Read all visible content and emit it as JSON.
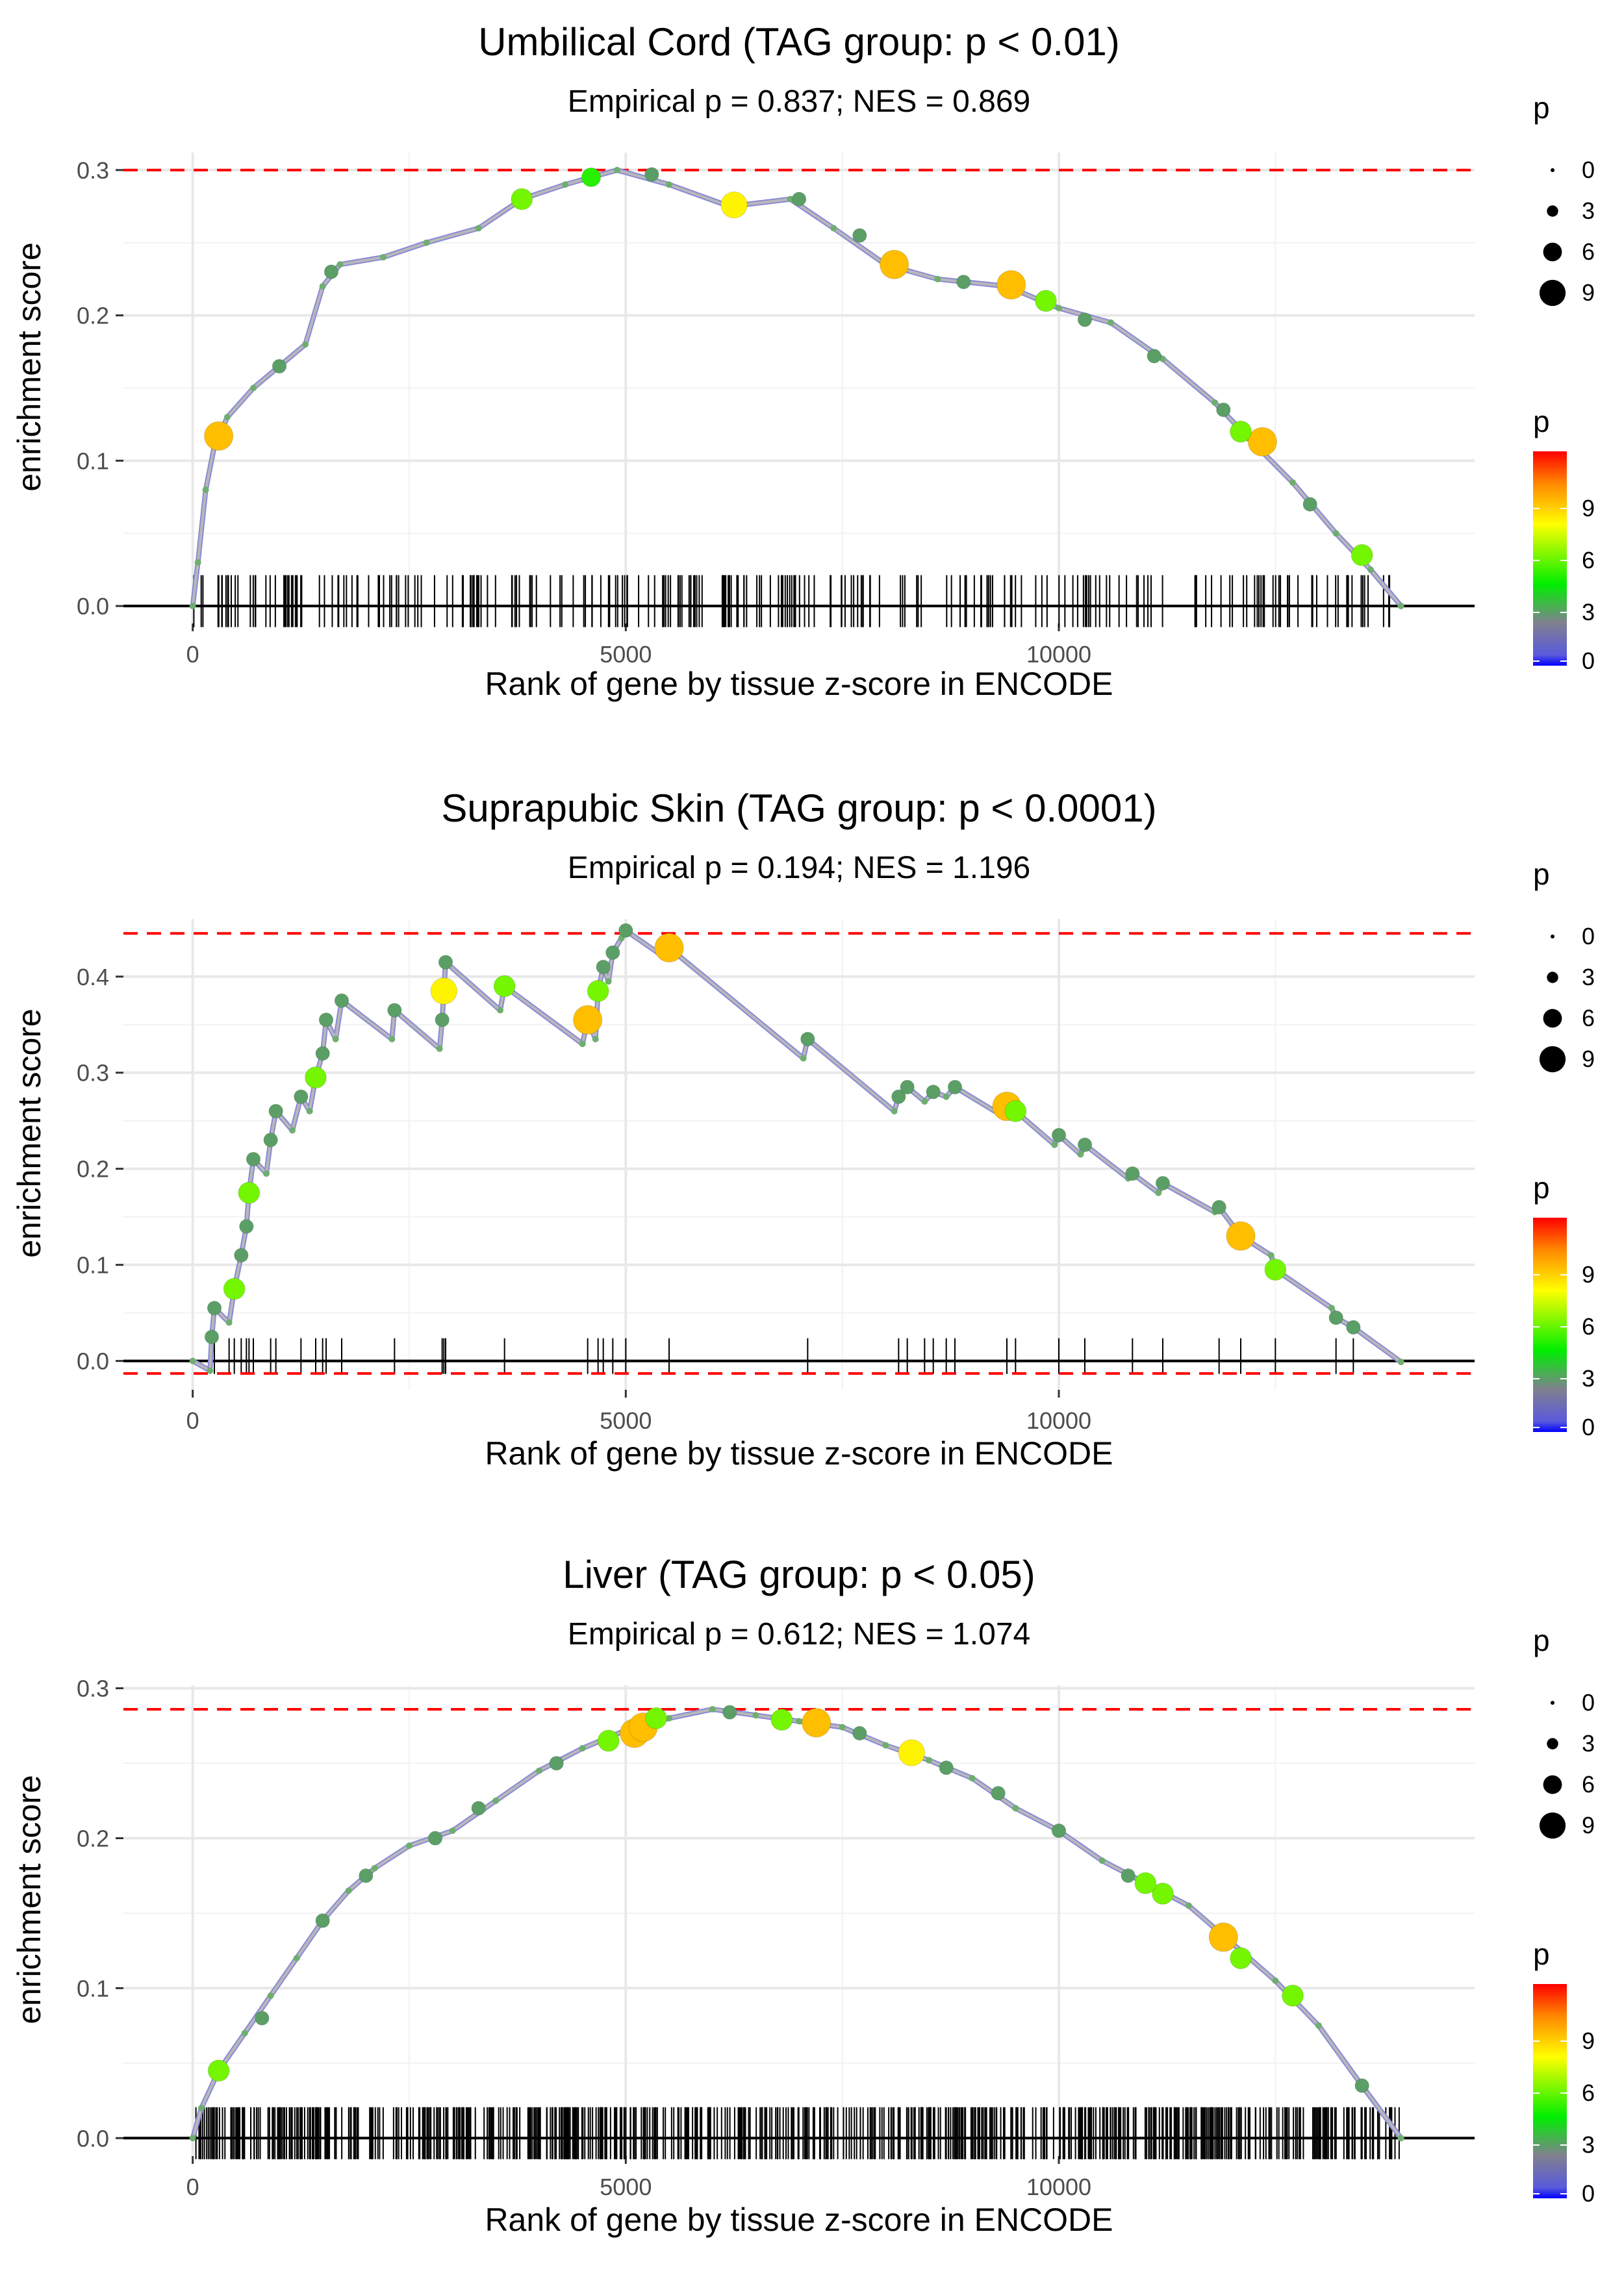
{
  "chart_data": [
    {
      "type": "line",
      "title": "Umbilical Cord (TAG group: p < 0.01)",
      "subtitle": "Empirical p = 0.837; NES = 0.869",
      "xlabel": "Rank of gene by tissue z-score in ENCODE",
      "ylabel": "enrichment score",
      "xlim": [
        -800,
        14800
      ],
      "ylim": [
        -0.012,
        0.312
      ],
      "xticks": [
        0,
        5000,
        10000
      ],
      "yticks": [
        0.0,
        0.1,
        0.2,
        0.3
      ],
      "ytick_labels": [
        "0.0",
        "0.1",
        "0.2",
        "0.3"
      ],
      "max_es": 0.3,
      "min_es": 0.0,
      "curve": [
        [
          0,
          0.0
        ],
        [
          60,
          0.03
        ],
        [
          150,
          0.08
        ],
        [
          250,
          0.11
        ],
        [
          400,
          0.13
        ],
        [
          700,
          0.15
        ],
        [
          1000,
          0.165
        ],
        [
          1300,
          0.18
        ],
        [
          1500,
          0.22
        ],
        [
          1700,
          0.235
        ],
        [
          2200,
          0.24
        ],
        [
          2700,
          0.25
        ],
        [
          3300,
          0.26
        ],
        [
          3800,
          0.28
        ],
        [
          4300,
          0.29
        ],
        [
          4900,
          0.3
        ],
        [
          5500,
          0.29
        ],
        [
          6200,
          0.275
        ],
        [
          6900,
          0.28
        ],
        [
          7400,
          0.26
        ],
        [
          8000,
          0.235
        ],
        [
          8600,
          0.225
        ],
        [
          9400,
          0.22
        ],
        [
          10000,
          0.205
        ],
        [
          10600,
          0.195
        ],
        [
          11200,
          0.17
        ],
        [
          11800,
          0.14
        ],
        [
          12200,
          0.115
        ],
        [
          12700,
          0.085
        ],
        [
          13200,
          0.05
        ],
        [
          13600,
          0.025
        ],
        [
          13950,
          0.0
        ]
      ],
      "highlight_points": [
        [
          300,
          0.117,
          9
        ],
        [
          3800,
          0.28,
          6
        ],
        [
          6250,
          0.276,
          8
        ],
        [
          8100,
          0.235,
          9
        ],
        [
          9450,
          0.221,
          9
        ],
        [
          12350,
          0.113,
          9
        ],
        [
          1000,
          0.165,
          3
        ],
        [
          1600,
          0.23,
          3
        ],
        [
          4600,
          0.295,
          5
        ],
        [
          5300,
          0.297,
          3
        ],
        [
          7000,
          0.28,
          3
        ],
        [
          7700,
          0.255,
          3
        ],
        [
          8900,
          0.223,
          3
        ],
        [
          9850,
          0.21,
          6
        ],
        [
          10300,
          0.197,
          3
        ],
        [
          11100,
          0.172,
          3
        ],
        [
          11900,
          0.135,
          3
        ],
        [
          12100,
          0.12,
          6
        ],
        [
          12900,
          0.07,
          3
        ],
        [
          13500,
          0.035,
          6
        ]
      ],
      "rug_count": 260,
      "rug_seed": 7,
      "size_legend": {
        "title": "p",
        "labels": [
          "0",
          "3",
          "6",
          "9"
        ]
      },
      "color_legend": {
        "title": "p",
        "labels": [
          "9",
          "6",
          "3",
          "0"
        ]
      }
    },
    {
      "type": "line",
      "title": "Suprapubic Skin (TAG group: p < 0.0001)",
      "subtitle": "Empirical p = 0.194; NES = 1.196",
      "xlabel": "Rank of gene by tissue z-score in ENCODE",
      "ylabel": "enrichment score",
      "xlim": [
        -800,
        14800
      ],
      "ylim": [
        -0.03,
        0.46
      ],
      "xticks": [
        0,
        5000,
        10000
      ],
      "yticks": [
        0.0,
        0.1,
        0.2,
        0.3,
        0.4
      ],
      "ytick_labels": [
        "0.0",
        "0.1",
        "0.2",
        "0.3",
        "0.4"
      ],
      "max_es": 0.445,
      "min_es": -0.013,
      "curve": [
        [
          0,
          0.0
        ],
        [
          200,
          -0.01
        ],
        [
          220,
          0.025
        ],
        [
          250,
          0.055
        ],
        [
          420,
          0.04
        ],
        [
          480,
          0.075
        ],
        [
          560,
          0.11
        ],
        [
          620,
          0.14
        ],
        [
          650,
          0.175
        ],
        [
          700,
          0.21
        ],
        [
          850,
          0.195
        ],
        [
          900,
          0.23
        ],
        [
          960,
          0.26
        ],
        [
          1150,
          0.24
        ],
        [
          1250,
          0.275
        ],
        [
          1350,
          0.26
        ],
        [
          1420,
          0.295
        ],
        [
          1500,
          0.32
        ],
        [
          1540,
          0.355
        ],
        [
          1650,
          0.335
        ],
        [
          1720,
          0.375
        ],
        [
          2300,
          0.335
        ],
        [
          2330,
          0.365
        ],
        [
          2850,
          0.325
        ],
        [
          2880,
          0.355
        ],
        [
          2900,
          0.385
        ],
        [
          2920,
          0.415
        ],
        [
          3550,
          0.365
        ],
        [
          3600,
          0.39
        ],
        [
          4500,
          0.33
        ],
        [
          4560,
          0.355
        ],
        [
          4650,
          0.335
        ],
        [
          4680,
          0.385
        ],
        [
          4740,
          0.41
        ],
        [
          4800,
          0.395
        ],
        [
          4850,
          0.425
        ],
        [
          4950,
          0.44
        ],
        [
          5000,
          0.448
        ],
        [
          5450,
          0.42
        ],
        [
          5500,
          0.43
        ],
        [
          7050,
          0.315
        ],
        [
          7100,
          0.335
        ],
        [
          8100,
          0.26
        ],
        [
          8150,
          0.275
        ],
        [
          8250,
          0.285
        ],
        [
          8450,
          0.27
        ],
        [
          8550,
          0.28
        ],
        [
          8700,
          0.275
        ],
        [
          8800,
          0.285
        ],
        [
          9350,
          0.255
        ],
        [
          9400,
          0.265
        ],
        [
          9500,
          0.26
        ],
        [
          9950,
          0.225
        ],
        [
          10000,
          0.235
        ],
        [
          10250,
          0.215
        ],
        [
          10300,
          0.225
        ],
        [
          10800,
          0.19
        ],
        [
          10850,
          0.195
        ],
        [
          11150,
          0.175
        ],
        [
          11200,
          0.185
        ],
        [
          11800,
          0.155
        ],
        [
          11850,
          0.16
        ],
        [
          12100,
          0.13
        ],
        [
          12450,
          0.11
        ],
        [
          12500,
          0.095
        ],
        [
          13150,
          0.055
        ],
        [
          13200,
          0.045
        ],
        [
          13400,
          0.035
        ],
        [
          13950,
          -0.001
        ]
      ],
      "highlight_points": [
        [
          220,
          0.025,
          3
        ],
        [
          250,
          0.055,
          3
        ],
        [
          480,
          0.075,
          6
        ],
        [
          560,
          0.11,
          3
        ],
        [
          620,
          0.14,
          3
        ],
        [
          650,
          0.175,
          6
        ],
        [
          700,
          0.21,
          3
        ],
        [
          900,
          0.23,
          3
        ],
        [
          960,
          0.26,
          3
        ],
        [
          1250,
          0.275,
          3
        ],
        [
          1420,
          0.295,
          6
        ],
        [
          1500,
          0.32,
          3
        ],
        [
          1540,
          0.355,
          3
        ],
        [
          1720,
          0.375,
          3
        ],
        [
          2330,
          0.365,
          3
        ],
        [
          2880,
          0.355,
          3
        ],
        [
          2900,
          0.385,
          8
        ],
        [
          2920,
          0.415,
          3
        ],
        [
          3600,
          0.39,
          6
        ],
        [
          4560,
          0.355,
          9
        ],
        [
          4680,
          0.385,
          6
        ],
        [
          4740,
          0.41,
          3
        ],
        [
          4850,
          0.425,
          3
        ],
        [
          5000,
          0.448,
          3
        ],
        [
          5500,
          0.43,
          9
        ],
        [
          7100,
          0.335,
          3
        ],
        [
          8150,
          0.275,
          3
        ],
        [
          8250,
          0.285,
          3
        ],
        [
          8550,
          0.28,
          3
        ],
        [
          8800,
          0.285,
          3
        ],
        [
          9400,
          0.265,
          9
        ],
        [
          9500,
          0.26,
          6
        ],
        [
          10000,
          0.235,
          3
        ],
        [
          10300,
          0.225,
          3
        ],
        [
          10850,
          0.195,
          3
        ],
        [
          11200,
          0.185,
          3
        ],
        [
          11850,
          0.16,
          3
        ],
        [
          12100,
          0.13,
          9
        ],
        [
          12500,
          0.095,
          6
        ],
        [
          13200,
          0.045,
          3
        ],
        [
          13400,
          0.035,
          3
        ]
      ],
      "rug_positions": [
        200,
        250,
        420,
        480,
        560,
        620,
        650,
        700,
        900,
        960,
        1250,
        1420,
        1500,
        1540,
        1720,
        2330,
        2880,
        2900,
        2920,
        3600,
        4560,
        4680,
        4740,
        4850,
        5000,
        5500,
        7100,
        8150,
        8250,
        8450,
        8550,
        8700,
        8800,
        9400,
        9500,
        10000,
        10300,
        10850,
        11200,
        11850,
        12100,
        12500,
        13200,
        13400
      ],
      "size_legend": {
        "title": "p",
        "labels": [
          "0",
          "3",
          "6",
          "9"
        ]
      },
      "color_legend": {
        "title": "p",
        "labels": [
          "9",
          "6",
          "3",
          "0"
        ]
      }
    },
    {
      "type": "line",
      "title": "Liver (TAG group: p < 0.05)",
      "subtitle": "Empirical p = 0.612; NES = 1.074",
      "xlabel": "Rank of gene by tissue z-score in ENCODE",
      "ylabel": "enrichment score",
      "xlim": [
        -800,
        14800
      ],
      "ylim": [
        -0.012,
        0.302
      ],
      "xticks": [
        0,
        5000,
        10000
      ],
      "yticks": [
        0.0,
        0.1,
        0.2,
        0.3
      ],
      "ytick_labels": [
        "0.0",
        "0.1",
        "0.2",
        "0.3"
      ],
      "max_es": 0.286,
      "min_es": 0.0,
      "curve": [
        [
          0,
          0.0
        ],
        [
          100,
          0.02
        ],
        [
          300,
          0.045
        ],
        [
          600,
          0.07
        ],
        [
          900,
          0.095
        ],
        [
          1200,
          0.12
        ],
        [
          1500,
          0.145
        ],
        [
          1800,
          0.165
        ],
        [
          2100,
          0.18
        ],
        [
          2500,
          0.195
        ],
        [
          3000,
          0.205
        ],
        [
          3500,
          0.225
        ],
        [
          4000,
          0.245
        ],
        [
          4500,
          0.26
        ],
        [
          5000,
          0.272
        ],
        [
          5500,
          0.28
        ],
        [
          6000,
          0.286
        ],
        [
          6500,
          0.282
        ],
        [
          7000,
          0.278
        ],
        [
          7500,
          0.274
        ],
        [
          8000,
          0.262
        ],
        [
          8500,
          0.252
        ],
        [
          9000,
          0.24
        ],
        [
          9500,
          0.22
        ],
        [
          10000,
          0.205
        ],
        [
          10500,
          0.185
        ],
        [
          11000,
          0.17
        ],
        [
          11500,
          0.155
        ],
        [
          12000,
          0.13
        ],
        [
          12500,
          0.105
        ],
        [
          13000,
          0.075
        ],
        [
          13500,
          0.035
        ],
        [
          13950,
          0.0
        ]
      ],
      "highlight_points": [
        [
          5100,
          0.27,
          9
        ],
        [
          5200,
          0.274,
          9
        ],
        [
          7200,
          0.277,
          9
        ],
        [
          8300,
          0.257,
          8
        ],
        [
          11900,
          0.134,
          9
        ],
        [
          12100,
          0.12,
          6
        ],
        [
          5350,
          0.28,
          6
        ],
        [
          6800,
          0.279,
          6
        ],
        [
          11200,
          0.163,
          6
        ],
        [
          300,
          0.045,
          6
        ],
        [
          800,
          0.08,
          3
        ],
        [
          1500,
          0.145,
          3
        ],
        [
          2000,
          0.175,
          3
        ],
        [
          2800,
          0.2,
          3
        ],
        [
          3300,
          0.22,
          3
        ],
        [
          4200,
          0.25,
          3
        ],
        [
          4800,
          0.265,
          6
        ],
        [
          6200,
          0.284,
          3
        ],
        [
          7700,
          0.27,
          3
        ],
        [
          8700,
          0.247,
          3
        ],
        [
          9300,
          0.23,
          3
        ],
        [
          10000,
          0.205,
          3
        ],
        [
          10800,
          0.175,
          3
        ],
        [
          11000,
          0.17,
          6
        ],
        [
          12700,
          0.095,
          6
        ],
        [
          13500,
          0.035,
          3
        ]
      ],
      "rug_count": 700,
      "rug_seed": 11,
      "size_legend": {
        "title": "p",
        "labels": [
          "0",
          "3",
          "6",
          "9"
        ]
      },
      "color_legend": {
        "title": "p",
        "labels": [
          "9",
          "6",
          "3",
          "0"
        ]
      }
    }
  ]
}
